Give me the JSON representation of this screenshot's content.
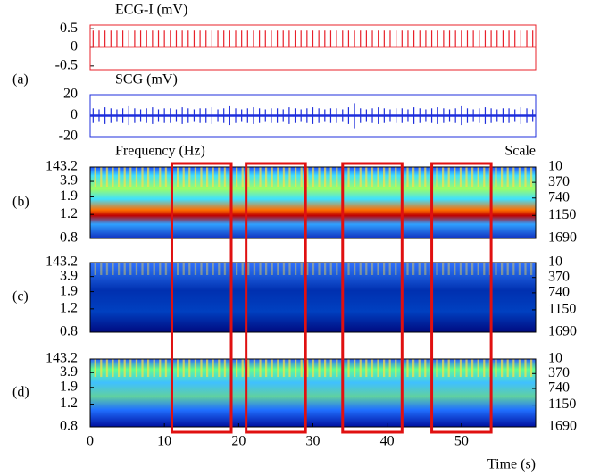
{
  "chart_data": [
    {
      "type": "spike",
      "title": "ECG-I (mV)",
      "panel_label": "(a)",
      "color": "#e8202a",
      "xlim": [
        0,
        60
      ],
      "ylim": [
        -0.6,
        0.6
      ],
      "yticks": [
        0.5,
        0,
        -0.5
      ],
      "x": [
        0.4,
        1.2,
        2,
        2.8,
        3.6,
        4.4,
        5.2,
        6,
        6.8,
        7.6,
        8.4,
        9.2,
        10,
        10.8,
        11.6,
        12.4,
        13.2,
        14,
        14.8,
        15.6,
        16.4,
        17.2,
        18,
        18.8,
        19.6,
        20.4,
        21.2,
        22,
        22.8,
        23.6,
        24.4,
        25.2,
        26,
        26.8,
        27.6,
        28.4,
        29.2,
        30,
        30.8,
        31.6,
        32.4,
        33.2,
        34,
        34.8,
        35.6,
        36.4,
        37.2,
        38,
        38.8,
        39.6,
        40.4,
        41.2,
        42,
        42.8,
        43.6,
        44.4,
        45.2,
        46,
        46.8,
        47.6,
        48.4,
        49.2,
        50,
        50.8,
        51.6,
        52.4,
        53.2,
        54,
        54.8,
        55.6,
        56.4,
        57.2,
        58,
        58.8,
        59.6
      ],
      "values": [
        0.45,
        0.45,
        0.45,
        0.45,
        0.45,
        0.45,
        0.45,
        0.45,
        0.45,
        0.45,
        0.45,
        0.45,
        0.45,
        0.45,
        0.45,
        0.45,
        0.45,
        0.45,
        0.45,
        0.45,
        0.45,
        0.45,
        0.45,
        0.45,
        0.45,
        0.45,
        0.45,
        0.45,
        0.45,
        0.45,
        0.45,
        0.45,
        0.45,
        0.45,
        0.45,
        0.45,
        0.45,
        0.45,
        0.45,
        0.45,
        0.45,
        0.45,
        0.45,
        0.45,
        0.45,
        0.45,
        0.45,
        0.45,
        0.45,
        0.45,
        0.45,
        0.45,
        0.45,
        0.45,
        0.45,
        0.45,
        0.45,
        0.45,
        0.45,
        0.45,
        0.45,
        0.45,
        0.45,
        0.45,
        0.45,
        0.45,
        0.45,
        0.45,
        0.45,
        0.45,
        0.45,
        0.45,
        0.45,
        0.45,
        0.45
      ]
    },
    {
      "type": "burst",
      "title": "SCG (mV)",
      "color": "#1f2fdc",
      "xlim": [
        0,
        60
      ],
      "ylim": [
        -20,
        20
      ],
      "yticks": [
        20,
        0,
        -20
      ],
      "x": [
        0.4,
        1.2,
        2,
        2.8,
        3.6,
        4.4,
        5.2,
        6,
        6.8,
        7.6,
        8.4,
        9.2,
        10,
        10.8,
        11.6,
        12.4,
        13.2,
        14,
        14.8,
        15.6,
        16.4,
        17.2,
        18,
        18.8,
        19.6,
        20.4,
        21.2,
        22,
        22.8,
        23.6,
        24.4,
        25.2,
        26,
        26.8,
        27.6,
        28.4,
        29.2,
        30,
        30.8,
        31.6,
        32.4,
        33.2,
        34,
        34.8,
        35.6,
        36.4,
        37.2,
        38,
        38.8,
        39.6,
        40.4,
        41.2,
        42,
        42.8,
        43.6,
        44.4,
        45.2,
        46,
        46.8,
        47.6,
        48.4,
        49.2,
        50,
        50.8,
        51.6,
        52.4,
        53.2,
        54,
        54.8,
        55.6,
        56.4,
        57.2,
        58,
        58.8,
        59.6
      ],
      "values": [
        7,
        6,
        8,
        7,
        6,
        7,
        9,
        7,
        6,
        7,
        8,
        6,
        7,
        7,
        6,
        8,
        7,
        6,
        7,
        7,
        8,
        6,
        7,
        9,
        7,
        6,
        7,
        8,
        7,
        6,
        7,
        7,
        6,
        8,
        7,
        6,
        7,
        8,
        7,
        6,
        7,
        7,
        6,
        8,
        12,
        7,
        6,
        7,
        8,
        7,
        6,
        7,
        7,
        6,
        8,
        7,
        6,
        7,
        8,
        7,
        6,
        7,
        9,
        7,
        6,
        7,
        8,
        7,
        6,
        7,
        7,
        6,
        8,
        7,
        6
      ]
    },
    {
      "type": "scalogram",
      "panel_label": "(b)",
      "ylabel": "Frequency (Hz)",
      "y2label": "Scale",
      "ylim": [
        143.2,
        0.8
      ],
      "yscale": "reciprocal",
      "yticks": [
        143.2,
        3.9,
        1.9,
        1.2,
        0.8
      ],
      "y2lim": [
        10,
        1690
      ],
      "y2ticks": [
        10,
        370,
        740,
        1150,
        1690
      ]
    },
    {
      "type": "scalogram",
      "panel_label": "(c)",
      "ylim": [
        143.2,
        0.8
      ],
      "yscale": "reciprocal",
      "yticks": [
        143.2,
        3.9,
        1.9,
        1.2,
        0.8
      ],
      "y2lim": [
        10,
        1690
      ],
      "y2ticks": [
        10,
        370,
        740,
        1150,
        1690
      ]
    },
    {
      "type": "scalogram",
      "panel_label": "(d)",
      "ylim": [
        143.2,
        0.8
      ],
      "yscale": "reciprocal",
      "yticks": [
        143.2,
        3.9,
        1.9,
        1.2,
        0.8
      ],
      "y2lim": [
        10,
        1690
      ],
      "y2ticks": [
        10,
        370,
        740,
        1150,
        1690
      ],
      "xlim": [
        0,
        60
      ],
      "xticks": [
        0,
        10,
        20,
        30,
        40,
        50
      ],
      "xlabel": "Time (s)",
      "highlights": [
        [
          11,
          19
        ],
        [
          21,
          29
        ],
        [
          34,
          42
        ],
        [
          46,
          54
        ]
      ],
      "highlight_color": "#e01010"
    }
  ]
}
